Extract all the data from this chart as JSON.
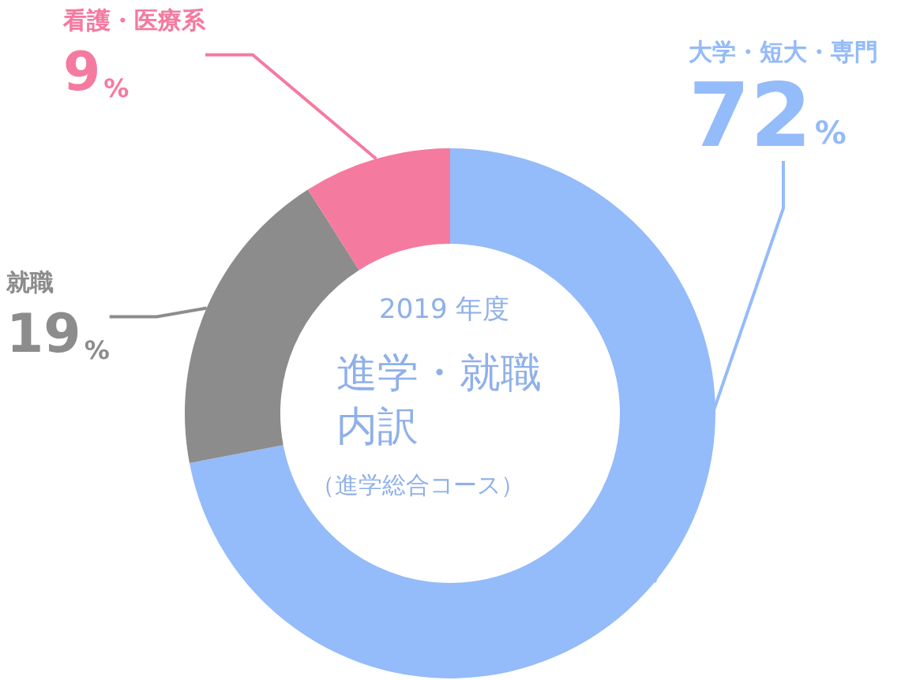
{
  "chart_data": {
    "type": "donut",
    "subtitle": "2019 年度",
    "title": "進学・就職内訳",
    "annotations": [
      "（進学総合コース）"
    ],
    "categories": [
      "大学・短大・専門",
      "就職",
      "看護・医療系"
    ],
    "values": [
      72,
      19,
      9
    ],
    "colors": [
      "#94bbfa",
      "#8c8c8c",
      "#f57aa0"
    ],
    "value_labels": [
      "72%",
      "19%",
      "9%"
    ],
    "legend": false
  }
}
